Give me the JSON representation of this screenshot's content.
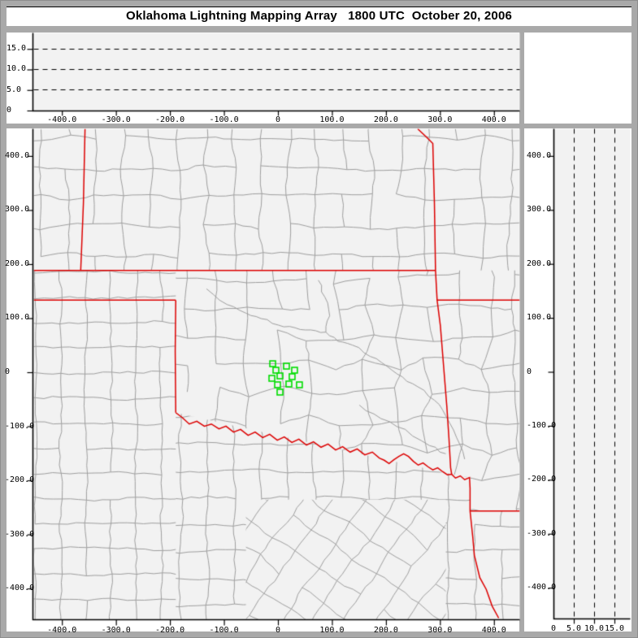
{
  "window": {
    "title": "Oklahoma Lightning Mapping Array   1800 UTC  October 20, 2006"
  },
  "colors": {
    "frame": "#a9a9a9",
    "panel_bg": "#ffffff",
    "plot_bg": "#f2f2f2",
    "axis": "#000000",
    "dashed_grid": "#000000",
    "county_line": "#9e9e9e",
    "state_border": "#dd0000",
    "station_marker": "#00dd00",
    "title_text": "#000000"
  },
  "chart_data": [
    {
      "id": "ew_altitude",
      "type": "line",
      "description": "altitude vs east-west distance panel (no data plotted)",
      "xlim": [
        -453,
        447
      ],
      "ylim": [
        0,
        19
      ],
      "x_ticks": [
        {
          "v": -400,
          "label": "-400.0"
        },
        {
          "v": -300,
          "label": "-300.0"
        },
        {
          "v": -200,
          "label": "-200.0"
        },
        {
          "v": -100,
          "label": "-100.0"
        },
        {
          "v": 0,
          "label": "0"
        },
        {
          "v": 100,
          "label": "100.0"
        },
        {
          "v": 200,
          "label": "200.0"
        },
        {
          "v": 300,
          "label": "300.0"
        },
        {
          "v": 400,
          "label": "400.0"
        }
      ],
      "y_ticks": [
        {
          "v": 15,
          "label": "15.0"
        },
        {
          "v": 10,
          "label": "10.0"
        },
        {
          "v": 5,
          "label": "5.0"
        },
        {
          "v": 0,
          "label": "0"
        }
      ],
      "gridlines": {
        "y": [
          5,
          10,
          15
        ],
        "style": "dashed"
      },
      "series": []
    },
    {
      "id": "plan_view",
      "type": "scatter",
      "description": "plan view map, km east-west vs km north-south",
      "xlim": [
        -453,
        447
      ],
      "ylim": [
        -457,
        451
      ],
      "x_ticks": [
        {
          "v": -400,
          "label": "-400.0"
        },
        {
          "v": -300,
          "label": "-300.0"
        },
        {
          "v": -200,
          "label": "-200.0"
        },
        {
          "v": -100,
          "label": "-100.0"
        },
        {
          "v": 0,
          "label": "0"
        },
        {
          "v": 100,
          "label": "100.0"
        },
        {
          "v": 200,
          "label": "200.0"
        },
        {
          "v": 300,
          "label": "300.0"
        },
        {
          "v": 400,
          "label": "400.0"
        }
      ],
      "y_ticks": [
        {
          "v": 400,
          "label": "400.0"
        },
        {
          "v": 300,
          "label": "300.0"
        },
        {
          "v": 200,
          "label": "200.0"
        },
        {
          "v": 100,
          "label": "100.0"
        },
        {
          "v": 0,
          "label": "0"
        },
        {
          "v": -100,
          "label": "-100.0"
        },
        {
          "v": -200,
          "label": "-200.0"
        },
        {
          "v": -300,
          "label": "-300.0"
        },
        {
          "v": -400,
          "label": "-400.0"
        }
      ],
      "stations": [
        [
          -10.5,
          16.5
        ],
        [
          15,
          12
        ],
        [
          -4.5,
          4.5
        ],
        [
          30,
          4.5
        ],
        [
          3,
          -6
        ],
        [
          25.5,
          -7.5
        ],
        [
          -12,
          -10.5
        ],
        [
          -1.5,
          -22.5
        ],
        [
          19.5,
          -21
        ],
        [
          39,
          -22.5
        ],
        [
          3,
          -36
        ]
      ],
      "state_borders": {
        "colorado_kansas": [
          [
            -358,
            451
          ],
          [
            -361,
            313
          ],
          [
            -366,
            189
          ]
        ],
        "oklahoma_kansas": [
          [
            -453,
            189
          ],
          [
            291,
            189
          ]
        ],
        "kansas_missouri_arkansas_texas": [
          [
            258,
            451
          ],
          [
            274,
            436
          ],
          [
            286,
            424
          ],
          [
            289,
            313
          ],
          [
            291,
            189
          ],
          [
            294,
            134
          ],
          [
            300,
            87
          ],
          [
            306,
            12
          ],
          [
            312,
            -63
          ],
          [
            316,
            -123
          ],
          [
            319,
            -176
          ],
          [
            321,
            -188
          ],
          [
            328,
            -195
          ],
          [
            337,
            -191
          ],
          [
            345,
            -198
          ],
          [
            354,
            -194
          ],
          [
            355,
            -214
          ],
          [
            355,
            -256
          ],
          [
            360,
            -304
          ],
          [
            363,
            -338
          ],
          [
            373,
            -379
          ],
          [
            385,
            -401
          ],
          [
            396,
            -432
          ],
          [
            408,
            -454
          ]
        ],
        "missouri_arkansas": [
          [
            294,
            134
          ],
          [
            447,
            134
          ]
        ],
        "arkansas_louisiana": [
          [
            355,
            -256
          ],
          [
            447,
            -256
          ]
        ],
        "panhandle_south": [
          [
            -453,
            134
          ],
          [
            -190,
            134
          ]
        ],
        "texas_oklahoma_100w": [
          [
            -190,
            134
          ],
          [
            -191,
            39
          ],
          [
            -190,
            -74
          ]
        ],
        "red_river": [
          [
            -190,
            -74
          ],
          [
            -178,
            -83
          ],
          [
            -165,
            -95
          ],
          [
            -151,
            -90
          ],
          [
            -137,
            -99
          ],
          [
            -124,
            -95
          ],
          [
            -110,
            -104
          ],
          [
            -97,
            -99
          ],
          [
            -83,
            -110
          ],
          [
            -70,
            -105
          ],
          [
            -56,
            -116
          ],
          [
            -43,
            -110
          ],
          [
            -29,
            -120
          ],
          [
            -16,
            -114
          ],
          [
            -2,
            -125
          ],
          [
            11,
            -119
          ],
          [
            25,
            -129
          ],
          [
            38,
            -123
          ],
          [
            52,
            -134
          ],
          [
            65,
            -128
          ],
          [
            79,
            -138
          ],
          [
            92,
            -132
          ],
          [
            106,
            -143
          ],
          [
            119,
            -137
          ],
          [
            133,
            -147
          ],
          [
            146,
            -141
          ],
          [
            160,
            -152
          ],
          [
            174,
            -147
          ],
          [
            187,
            -158
          ],
          [
            196,
            -162
          ],
          [
            205,
            -168
          ],
          [
            214,
            -161
          ],
          [
            223,
            -155
          ],
          [
            232,
            -150
          ],
          [
            241,
            -155
          ],
          [
            250,
            -164
          ],
          [
            259,
            -171
          ],
          [
            268,
            -167
          ],
          [
            277,
            -174
          ],
          [
            286,
            -180
          ],
          [
            295,
            -176
          ],
          [
            304,
            -183
          ],
          [
            313,
            -189
          ],
          [
            321,
            -188
          ]
        ]
      },
      "rivers": [
        [
          [
            -133,
            155
          ],
          [
            -95,
            126
          ],
          [
            -60,
            110
          ],
          [
            -32,
            100
          ],
          [
            0,
            88
          ],
          [
            31,
            83
          ],
          [
            60,
            79
          ],
          [
            88,
            75
          ]
        ],
        [
          [
            74,
            171
          ],
          [
            86,
            140
          ],
          [
            95,
            105
          ],
          [
            88,
            75
          ],
          [
            110,
            58
          ],
          [
            137,
            51
          ],
          [
            170,
            30
          ],
          [
            201,
            12
          ],
          [
            230,
            -8
          ],
          [
            258,
            -26
          ],
          [
            289,
            -51
          ],
          [
            310,
            -80
          ],
          [
            330,
            -120
          ],
          [
            345,
            -160
          ]
        ],
        [
          [
            150,
            -60
          ],
          [
            190,
            -85
          ],
          [
            235,
            -105
          ],
          [
            280,
            -135
          ],
          [
            310,
            -150
          ]
        ]
      ]
    },
    {
      "id": "ns_altitude",
      "type": "line",
      "description": "altitude vs north-south distance panel (no data plotted)",
      "xlim": [
        0,
        18.8
      ],
      "ylim": [
        -457,
        451
      ],
      "x_ticks": [
        {
          "v": 0,
          "label": "0"
        },
        {
          "v": 5,
          "label": "5.0"
        },
        {
          "v": 10,
          "label": "10.0"
        },
        {
          "v": 15,
          "label": "15.0"
        }
      ],
      "y_ticks": [
        {
          "v": 400,
          "label": "400.0"
        },
        {
          "v": 300,
          "label": "300.0"
        },
        {
          "v": 200,
          "label": "200.0"
        },
        {
          "v": 100,
          "label": "100.0"
        },
        {
          "v": 0,
          "label": "0"
        },
        {
          "v": -100,
          "label": "-100.0"
        },
        {
          "v": -200,
          "label": "-200.0"
        },
        {
          "v": -300,
          "label": "-300.0"
        },
        {
          "v": -400,
          "label": "-400.0"
        }
      ],
      "gridlines": {
        "x": [
          5,
          10,
          15
        ],
        "style": "dashed"
      },
      "series": []
    }
  ]
}
